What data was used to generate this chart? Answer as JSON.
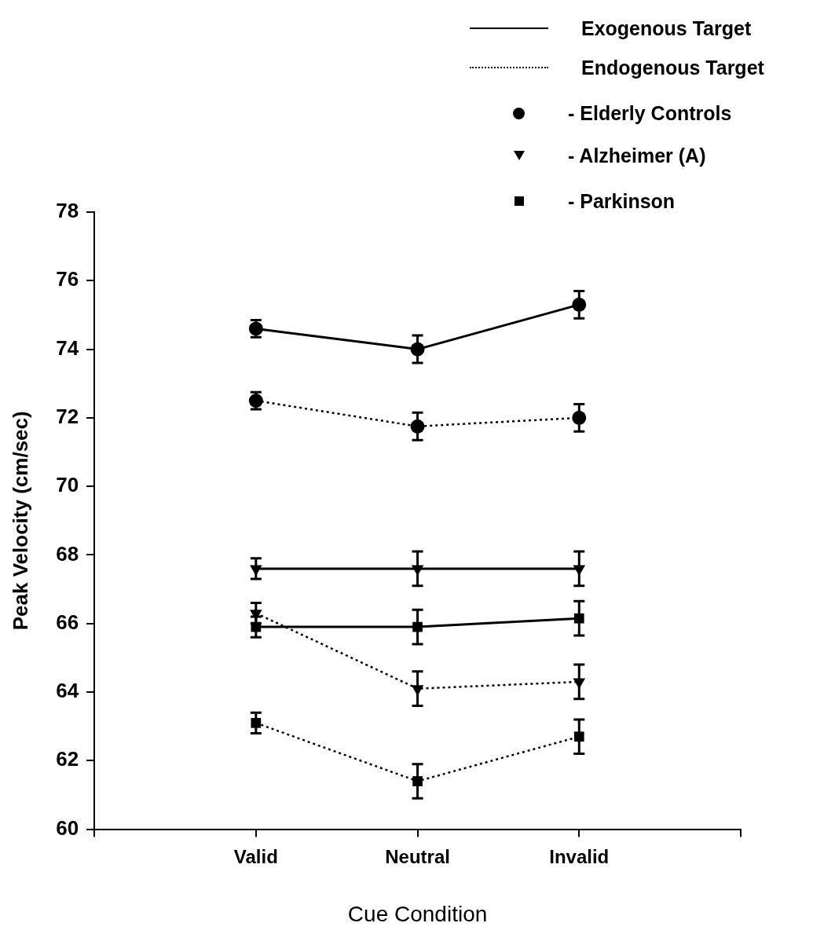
{
  "chart_data": {
    "type": "line",
    "xlabel": "Cue Condition",
    "ylabel": "Peak Velocity (cm/sec)",
    "categories": [
      null,
      "Valid",
      "Neutral",
      "Invalid",
      null
    ],
    "series": [
      {
        "color": "#000000",
        "line_style": "solid",
        "marker": "circle",
        "values": [
          null,
          74.6,
          74.0,
          75.3,
          null
        ],
        "errors": [
          null,
          0.25,
          0.4,
          0.4,
          null
        ]
      },
      {
        "color": "#000000",
        "line_style": "dotted",
        "marker": "circle",
        "values": [
          null,
          72.5,
          71.75,
          72.0,
          null
        ],
        "errors": [
          null,
          0.25,
          0.4,
          0.4,
          null
        ]
      },
      {
        "color": "#000000",
        "line_style": "solid",
        "marker": "triangle",
        "values": [
          null,
          67.6,
          67.6,
          67.6,
          null
        ],
        "errors": [
          null,
          0.3,
          0.5,
          0.5,
          null
        ]
      },
      {
        "color": "#000000",
        "line_style": "dotted",
        "marker": "triangle",
        "values": [
          null,
          66.3,
          64.1,
          64.3,
          null
        ],
        "errors": [
          null,
          0.3,
          0.5,
          0.5,
          null
        ]
      },
      {
        "color": "#000000",
        "line_style": "solid",
        "marker": "square",
        "values": [
          null,
          65.9,
          65.9,
          66.15,
          null
        ],
        "errors": [
          null,
          0.3,
          0.5,
          0.5,
          null
        ]
      },
      {
        "color": "#000000",
        "line_style": "dotted",
        "marker": "square",
        "values": [
          null,
          63.1,
          61.4,
          62.7,
          null
        ],
        "errors": [
          null,
          0.3,
          0.5,
          0.5,
          null
        ]
      }
    ],
    "ylim": [
      60,
      78
    ],
    "yticks": [
      60,
      62,
      64,
      66,
      68,
      70,
      72,
      74,
      76,
      78
    ],
    "grid": false,
    "annotations": [
      "Exogenous Target",
      "Endogenous Target",
      "- Elderly Controls",
      "- Alzheimer (A)",
      "- Parkinson"
    ]
  }
}
